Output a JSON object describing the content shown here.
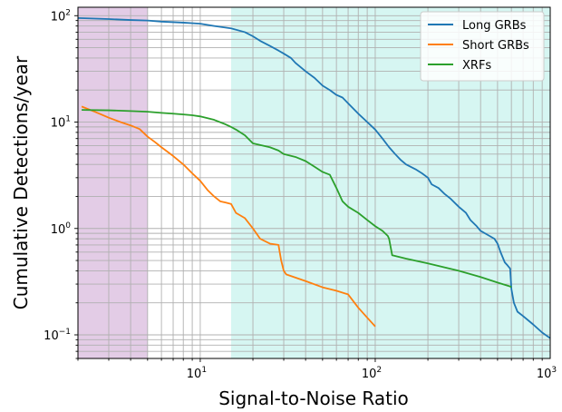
{
  "chart_data": {
    "type": "line",
    "title": "",
    "xlabel": "Signal-to-Noise Ratio",
    "ylabel": "Cumulative Detections/year",
    "xscale": "log",
    "yscale": "log",
    "xlim": [
      2,
      1000
    ],
    "ylim": [
      0.06,
      120
    ],
    "grid": "both (major and minor)",
    "legend_loc": "upper right",
    "x_ticks": [
      {
        "value": 10,
        "base": "10",
        "exp": "1"
      },
      {
        "value": 100,
        "base": "10",
        "exp": "2"
      },
      {
        "value": 1000,
        "base": "10",
        "exp": "3"
      }
    ],
    "y_ticks": [
      {
        "value": 0.1,
        "base": "10",
        "exp": "−1"
      },
      {
        "value": 1,
        "base": "10",
        "exp": "0"
      },
      {
        "value": 10,
        "base": "10",
        "exp": "1"
      },
      {
        "value": 100,
        "base": "10",
        "exp": "2"
      }
    ],
    "shaded_regions": [
      {
        "x_start": 2,
        "x_end": 5,
        "color": "#e3cce6"
      },
      {
        "x_start": 15,
        "x_end": 1000,
        "color": "#d6f6f2"
      }
    ],
    "series": [
      {
        "name": "Long GRBs",
        "color": "#1f77b4",
        "x": [
          2,
          3,
          4,
          5,
          6,
          8,
          10,
          12,
          15,
          18,
          20,
          22,
          25,
          28,
          30,
          33,
          35,
          40,
          45,
          50,
          55,
          60,
          65,
          70,
          80,
          90,
          100,
          110,
          120,
          130,
          140,
          150,
          170,
          185,
          200,
          210,
          230,
          250,
          270,
          300,
          330,
          350,
          380,
          400,
          450,
          480,
          500,
          520,
          550,
          570,
          590,
          600,
          620,
          650,
          700,
          800,
          900,
          1000
        ],
        "y": [
          95,
          93,
          91,
          90,
          88,
          86,
          84,
          80,
          76,
          70,
          64,
          58,
          52,
          47,
          44,
          40,
          36,
          30,
          26,
          22,
          20,
          18,
          17,
          15,
          12,
          10,
          8.5,
          7.0,
          5.8,
          5.0,
          4.4,
          4.0,
          3.6,
          3.3,
          3.0,
          2.6,
          2.4,
          2.1,
          1.9,
          1.6,
          1.4,
          1.2,
          1.05,
          0.95,
          0.85,
          0.8,
          0.72,
          0.6,
          0.48,
          0.45,
          0.42,
          0.27,
          0.2,
          0.165,
          0.15,
          0.125,
          0.105,
          0.093
        ]
      },
      {
        "name": "Short GRBs",
        "color": "#ff7f0e",
        "x": [
          2.1,
          2.5,
          3,
          3.5,
          4,
          4.5,
          5,
          5.5,
          6,
          7,
          8,
          9,
          10,
          11,
          12,
          13,
          14,
          15,
          16,
          18,
          20,
          22,
          25,
          28,
          29,
          30,
          31,
          40,
          50,
          60,
          70,
          80,
          90,
          100
        ],
        "y": [
          14,
          12.5,
          11,
          10,
          9.3,
          8.6,
          7.3,
          6.5,
          5.8,
          4.8,
          4.0,
          3.3,
          2.8,
          2.3,
          2.0,
          1.8,
          1.75,
          1.7,
          1.4,
          1.25,
          1.0,
          0.8,
          0.72,
          0.7,
          0.5,
          0.4,
          0.37,
          0.32,
          0.28,
          0.26,
          0.24,
          0.18,
          0.145,
          0.12
        ]
      },
      {
        "name": "XRFs",
        "color": "#2ca02c",
        "x": [
          2.1,
          3,
          4,
          5,
          6,
          7,
          8,
          9,
          10,
          12,
          14,
          15,
          16,
          18,
          20,
          25,
          28,
          30,
          35,
          40,
          45,
          50,
          55,
          60,
          65,
          70,
          80,
          90,
          100,
          110,
          118,
          120,
          125,
          150,
          200,
          300,
          400,
          500,
          590,
          600
        ],
        "y": [
          13,
          12.9,
          12.7,
          12.5,
          12.2,
          12,
          11.8,
          11.6,
          11.3,
          10.5,
          9.5,
          9.0,
          8.5,
          7.5,
          6.3,
          5.8,
          5.4,
          5.0,
          4.7,
          4.3,
          3.8,
          3.4,
          3.2,
          2.4,
          1.8,
          1.6,
          1.4,
          1.2,
          1.05,
          0.95,
          0.85,
          0.8,
          0.56,
          0.52,
          0.47,
          0.4,
          0.35,
          0.31,
          0.285,
          0.28
        ]
      }
    ]
  }
}
